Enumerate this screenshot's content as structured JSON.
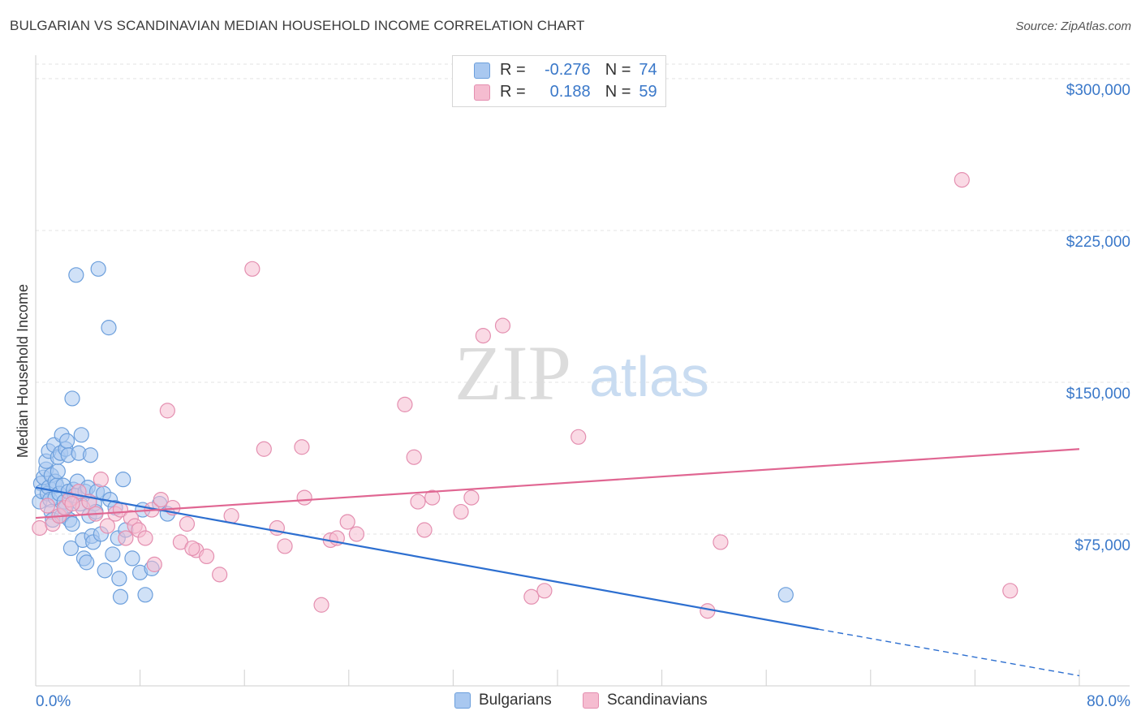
{
  "header": {
    "title": "BULGARIAN VS SCANDINAVIAN MEDIAN HOUSEHOLD INCOME CORRELATION CHART",
    "source": "Source: ZipAtlas.com"
  },
  "watermark": {
    "zip": "ZIP",
    "atlas": "atlas"
  },
  "legend": {
    "rows": [
      {
        "r_label": "R =",
        "r_value": "-0.276",
        "n_label": "N =",
        "n_value": "74"
      },
      {
        "r_label": "R =",
        "r_value": "0.188",
        "n_label": "N =",
        "n_value": "59"
      }
    ]
  },
  "bottom_legend": {
    "items": [
      "Bulgarians",
      "Scandinavians"
    ]
  },
  "colors": {
    "bulgarian_fill": "#a9c8f0",
    "bulgarian_stroke": "#6c9fdc",
    "bulgarian_line": "#2d6fd0",
    "scandinavian_fill": "#f5bcd0",
    "scandinavian_stroke": "#e48fb0",
    "scandinavian_line": "#e06692",
    "axis_label": "#3a78c9",
    "grid": "#e3e3e3"
  },
  "chart_data": {
    "type": "scatter",
    "title": "BULGARIAN VS SCANDINAVIAN MEDIAN HOUSEHOLD INCOME CORRELATION CHART",
    "xlabel": "",
    "ylabel": "Median Household Income",
    "xlim": [
      0,
      80
    ],
    "ylim": [
      0,
      310000
    ],
    "x_tick_labels": [
      "0.0%",
      "80.0%"
    ],
    "y_ticks": [
      {
        "value": 75000,
        "label": "$75,000"
      },
      {
        "value": 150000,
        "label": "$150,000"
      },
      {
        "value": 225000,
        "label": "$225,000"
      },
      {
        "value": 300000,
        "label": "$300,000"
      }
    ],
    "grid": true,
    "series": [
      {
        "name": "Bulgarians",
        "r": -0.276,
        "n": 74,
        "trend": {
          "x0": 0,
          "y0": 98000,
          "x1": 60,
          "y1": 28000,
          "dash_to_x": 80,
          "dash_to_y": 5000
        },
        "points": [
          [
            0.3,
            91000
          ],
          [
            0.4,
            100000
          ],
          [
            0.5,
            96000
          ],
          [
            0.6,
            103000
          ],
          [
            0.8,
            107000
          ],
          [
            0.8,
            111000
          ],
          [
            0.9,
            95000
          ],
          [
            1.0,
            98000
          ],
          [
            1.0,
            116000
          ],
          [
            1.1,
            92000
          ],
          [
            1.2,
            104000
          ],
          [
            1.2,
            86000
          ],
          [
            1.3,
            82000
          ],
          [
            1.4,
            119000
          ],
          [
            1.5,
            101000
          ],
          [
            1.5,
            93000
          ],
          [
            1.6,
            99000
          ],
          [
            1.7,
            106000
          ],
          [
            1.7,
            113000
          ],
          [
            1.8,
            95000
          ],
          [
            1.9,
            115000
          ],
          [
            2.0,
            84000
          ],
          [
            2.0,
            124000
          ],
          [
            2.1,
            99000
          ],
          [
            2.2,
            91000
          ],
          [
            2.3,
            117000
          ],
          [
            2.3,
            88000
          ],
          [
            2.4,
            121000
          ],
          [
            2.5,
            96000
          ],
          [
            2.5,
            114000
          ],
          [
            2.6,
            82000
          ],
          [
            2.7,
            68000
          ],
          [
            2.8,
            80000
          ],
          [
            2.8,
            142000
          ],
          [
            2.9,
            97000
          ],
          [
            3.0,
            94000
          ],
          [
            3.1,
            203000
          ],
          [
            3.2,
            101000
          ],
          [
            3.3,
            115000
          ],
          [
            3.4,
            90000
          ],
          [
            3.5,
            124000
          ],
          [
            3.6,
            72000
          ],
          [
            3.7,
            63000
          ],
          [
            3.8,
            96000
          ],
          [
            3.9,
            61000
          ],
          [
            4.0,
            98000
          ],
          [
            4.1,
            84000
          ],
          [
            4.2,
            114000
          ],
          [
            4.3,
            74000
          ],
          [
            4.4,
            71000
          ],
          [
            4.5,
            90000
          ],
          [
            4.6,
            86000
          ],
          [
            4.7,
            96000
          ],
          [
            4.8,
            206000
          ],
          [
            5.0,
            75000
          ],
          [
            5.2,
            95000
          ],
          [
            5.3,
            57000
          ],
          [
            5.6,
            177000
          ],
          [
            5.7,
            92000
          ],
          [
            5.9,
            65000
          ],
          [
            6.1,
            88000
          ],
          [
            6.3,
            73000
          ],
          [
            6.4,
            53000
          ],
          [
            6.5,
            44000
          ],
          [
            6.7,
            102000
          ],
          [
            6.9,
            77000
          ],
          [
            7.4,
            63000
          ],
          [
            8.0,
            56000
          ],
          [
            8.4,
            45000
          ],
          [
            8.2,
            87000
          ],
          [
            8.9,
            58000
          ],
          [
            9.5,
            90000
          ],
          [
            10.1,
            85000
          ],
          [
            57.5,
            45000
          ]
        ]
      },
      {
        "name": "Scandinavians",
        "r": 0.188,
        "n": 59,
        "trend": {
          "x0": 0,
          "y0": 83000,
          "x1": 80,
          "y1": 117000
        },
        "points": [
          [
            0.3,
            78000
          ],
          [
            0.9,
            89000
          ],
          [
            1.3,
            80000
          ],
          [
            1.8,
            84000
          ],
          [
            2.2,
            88000
          ],
          [
            2.6,
            92000
          ],
          [
            3.3,
            96000
          ],
          [
            3.6,
            88000
          ],
          [
            4.1,
            91000
          ],
          [
            4.6,
            85000
          ],
          [
            5.0,
            102000
          ],
          [
            5.5,
            79000
          ],
          [
            6.1,
            85000
          ],
          [
            6.5,
            87000
          ],
          [
            6.9,
            73000
          ],
          [
            7.3,
            83000
          ],
          [
            7.6,
            79000
          ],
          [
            7.9,
            77000
          ],
          [
            8.4,
            73000
          ],
          [
            8.9,
            87000
          ],
          [
            9.1,
            60000
          ],
          [
            9.6,
            92000
          ],
          [
            10.1,
            136000
          ],
          [
            10.5,
            88000
          ],
          [
            11.1,
            71000
          ],
          [
            11.6,
            80000
          ],
          [
            12.3,
            67000
          ],
          [
            13.1,
            64000
          ],
          [
            14.1,
            55000
          ],
          [
            15.0,
            84000
          ],
          [
            16.6,
            206000
          ],
          [
            17.5,
            117000
          ],
          [
            18.5,
            78000
          ],
          [
            19.1,
            69000
          ],
          [
            20.4,
            118000
          ],
          [
            20.6,
            93000
          ],
          [
            21.9,
            40000
          ],
          [
            22.6,
            72000
          ],
          [
            23.1,
            73000
          ],
          [
            23.9,
            81000
          ],
          [
            24.6,
            75000
          ],
          [
            28.3,
            139000
          ],
          [
            29.0,
            113000
          ],
          [
            29.3,
            91000
          ],
          [
            29.8,
            77000
          ],
          [
            30.4,
            93000
          ],
          [
            32.6,
            86000
          ],
          [
            33.4,
            93000
          ],
          [
            34.3,
            173000
          ],
          [
            35.8,
            178000
          ],
          [
            38.0,
            44000
          ],
          [
            39.0,
            47000
          ],
          [
            41.6,
            123000
          ],
          [
            51.5,
            37000
          ],
          [
            52.5,
            71000
          ],
          [
            71.0,
            250000
          ],
          [
            74.7,
            47000
          ],
          [
            2.8,
            90000
          ],
          [
            12.0,
            68000
          ]
        ]
      }
    ]
  }
}
